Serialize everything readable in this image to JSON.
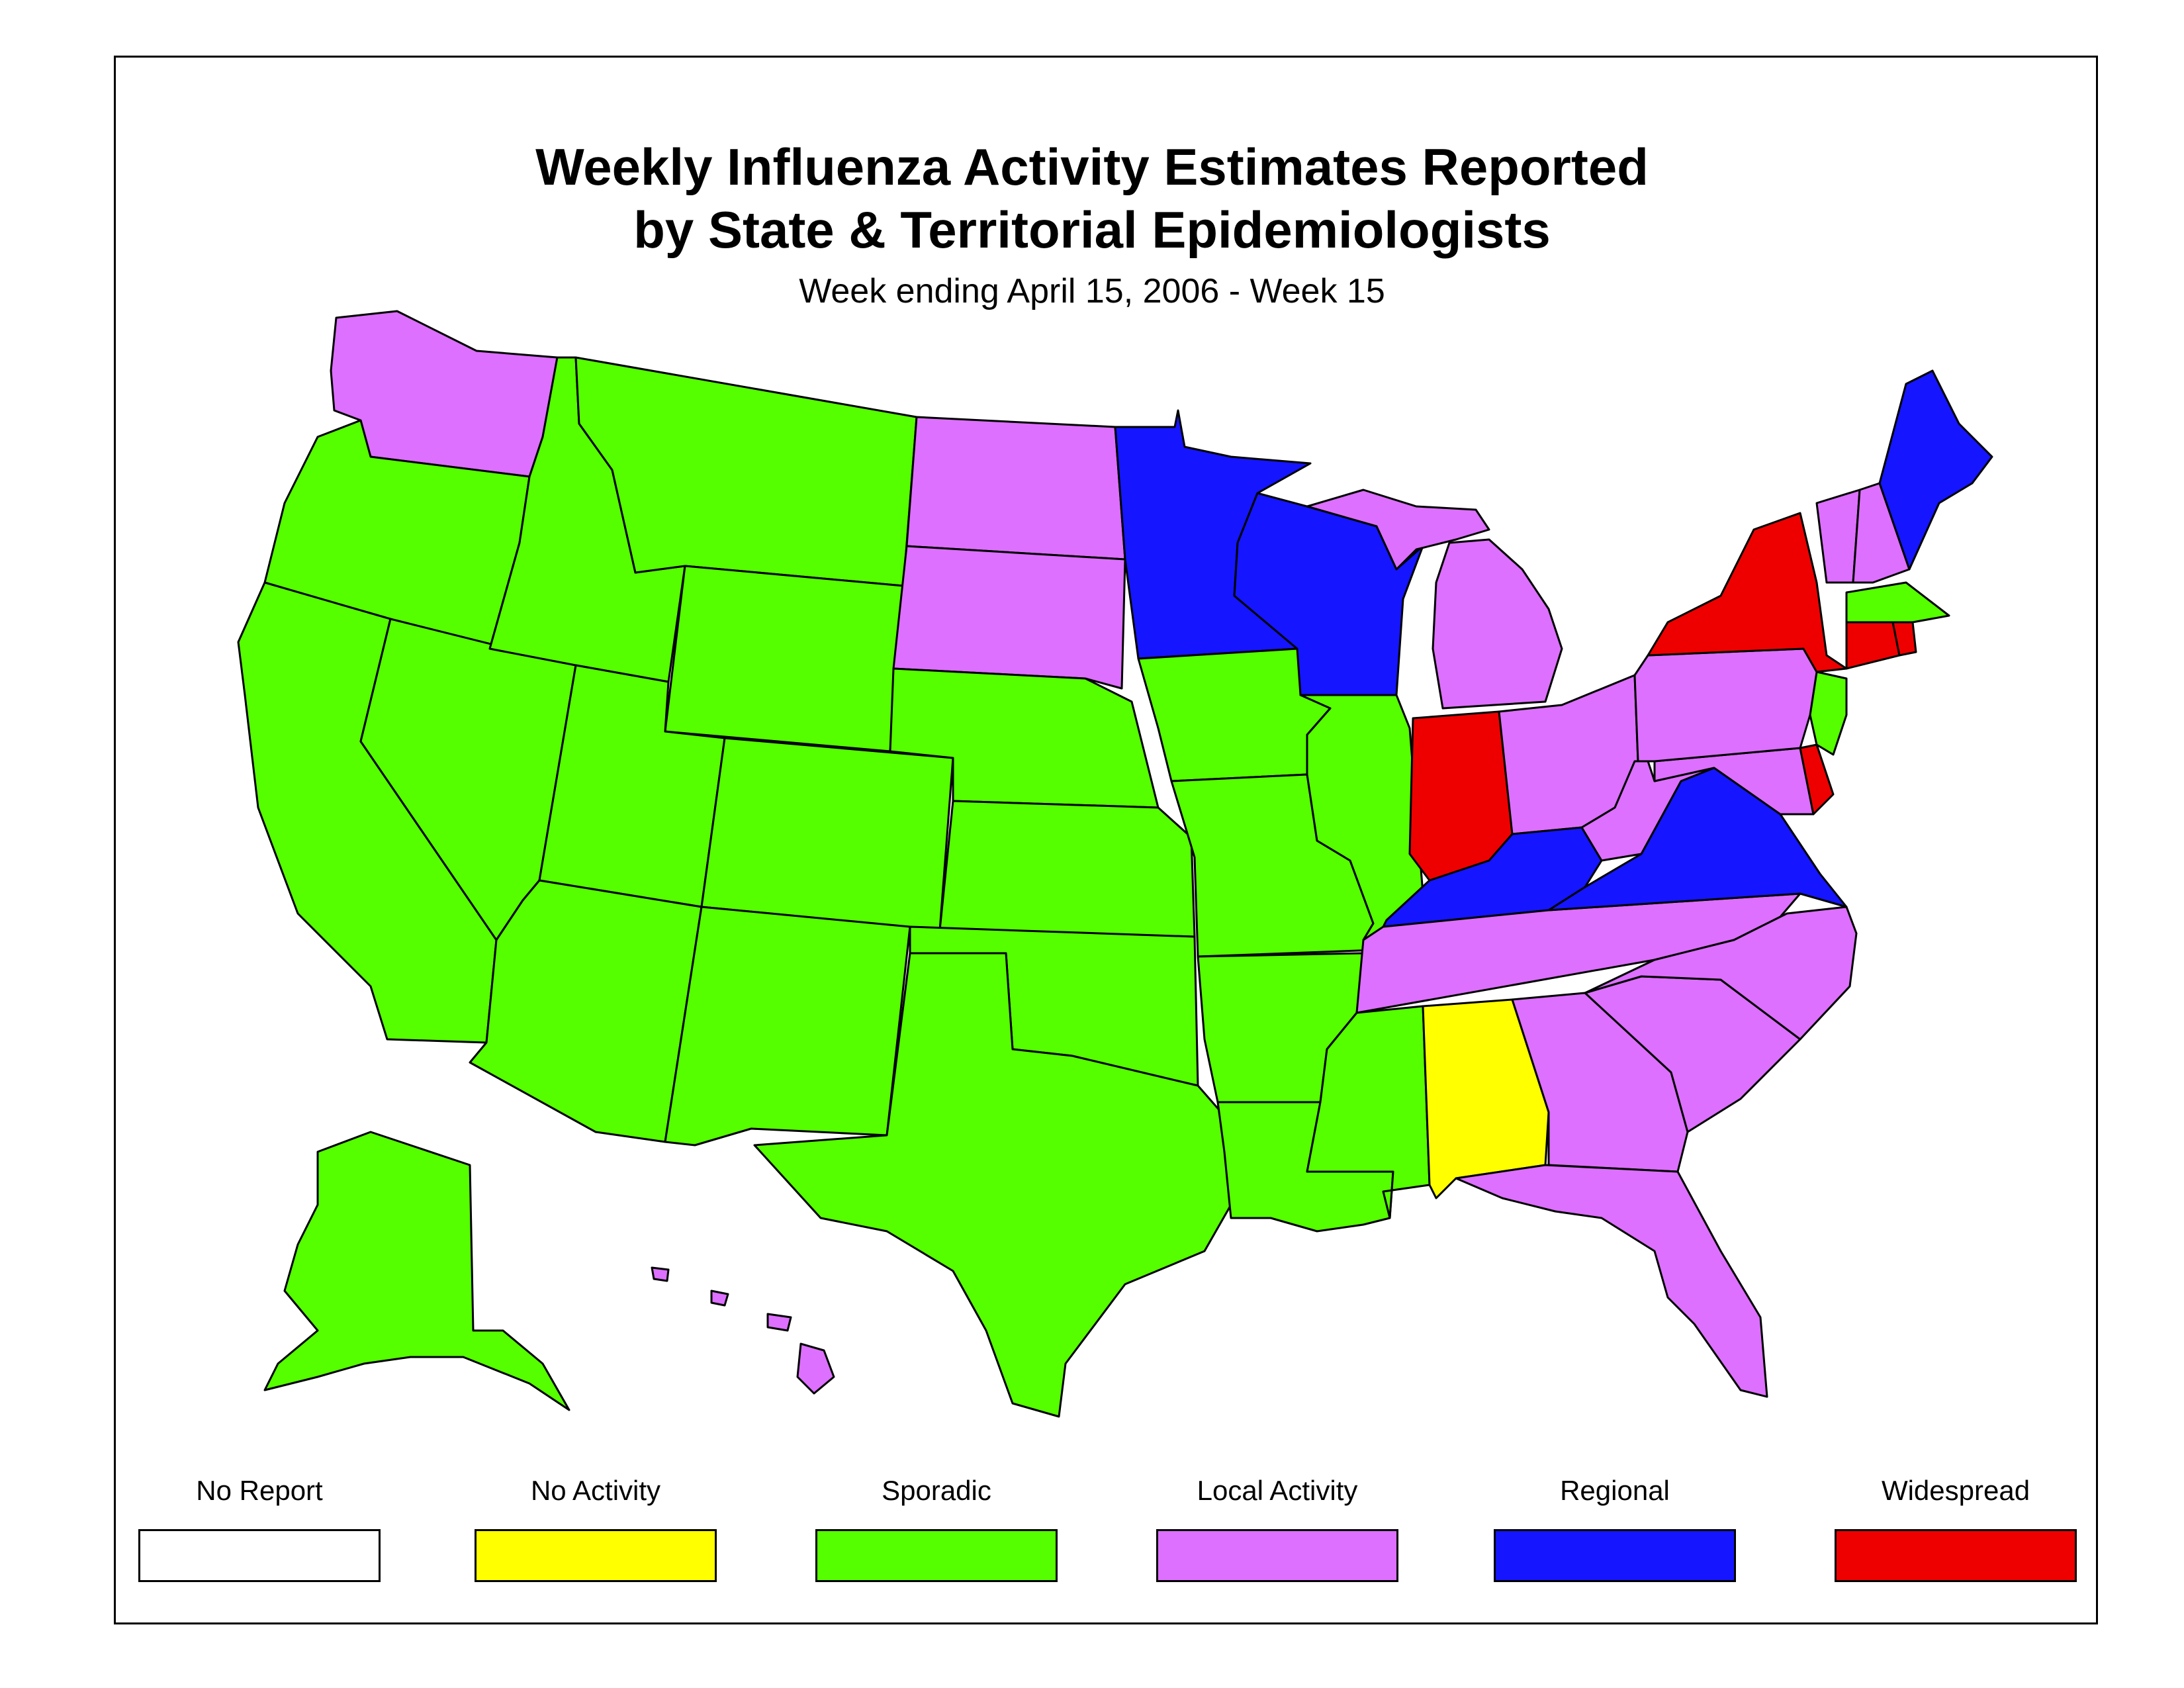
{
  "title": {
    "line1": "Weekly Influenza Activity Estimates Reported",
    "line2": "by State & Territorial Epidemiologists"
  },
  "subtitle": "Week ending April 15, 2006 - Week 15",
  "legend": [
    {
      "key": "none",
      "label": "No Report",
      "color": "#ffffff"
    },
    {
      "key": "noact",
      "label": "No Activity",
      "color": "#ffff00"
    },
    {
      "key": "sporadic",
      "label": "Sporadic",
      "color": "#55ff00"
    },
    {
      "key": "local",
      "label": "Local Activity",
      "color": "#dd70ff"
    },
    {
      "key": "regional",
      "label": "Regional",
      "color": "#1515ff"
    },
    {
      "key": "widespread",
      "label": "Widespread",
      "color": "#ee0000"
    }
  ],
  "states": {
    "Washington": "local",
    "Oregon": "sporadic",
    "California": "sporadic",
    "Nevada": "sporadic",
    "Idaho": "sporadic",
    "Montana": "sporadic",
    "Wyoming": "sporadic",
    "Utah": "sporadic",
    "Colorado": "sporadic",
    "Arizona": "sporadic",
    "New Mexico": "sporadic",
    "North Dakota": "local",
    "South Dakota": "local",
    "Nebraska": "sporadic",
    "Kansas": "sporadic",
    "Oklahoma": "sporadic",
    "Texas": "sporadic",
    "Minnesota": "regional",
    "Iowa": "sporadic",
    "Missouri": "sporadic",
    "Arkansas": "sporadic",
    "Louisiana": "sporadic",
    "Wisconsin": "regional",
    "Illinois": "sporadic",
    "Michigan": "local",
    "Indiana": "widespread",
    "Ohio": "local",
    "Kentucky": "regional",
    "Tennessee": "local",
    "Mississippi": "sporadic",
    "Alabama": "noact",
    "Georgia": "local",
    "Florida": "local",
    "South Carolina": "local",
    "North Carolina": "local",
    "Virginia": "regional",
    "West Virginia": "local",
    "Maryland": "local",
    "Delaware": "widespread",
    "New Jersey": "sporadic",
    "Pennsylvania": "local",
    "New York": "widespread",
    "Connecticut": "widespread",
    "Rhode Island": "widespread",
    "Massachusetts": "sporadic",
    "Vermont": "local",
    "New Hampshire": "local",
    "Maine": "regional",
    "Alaska": "sporadic",
    "Hawaii": "local"
  }
}
